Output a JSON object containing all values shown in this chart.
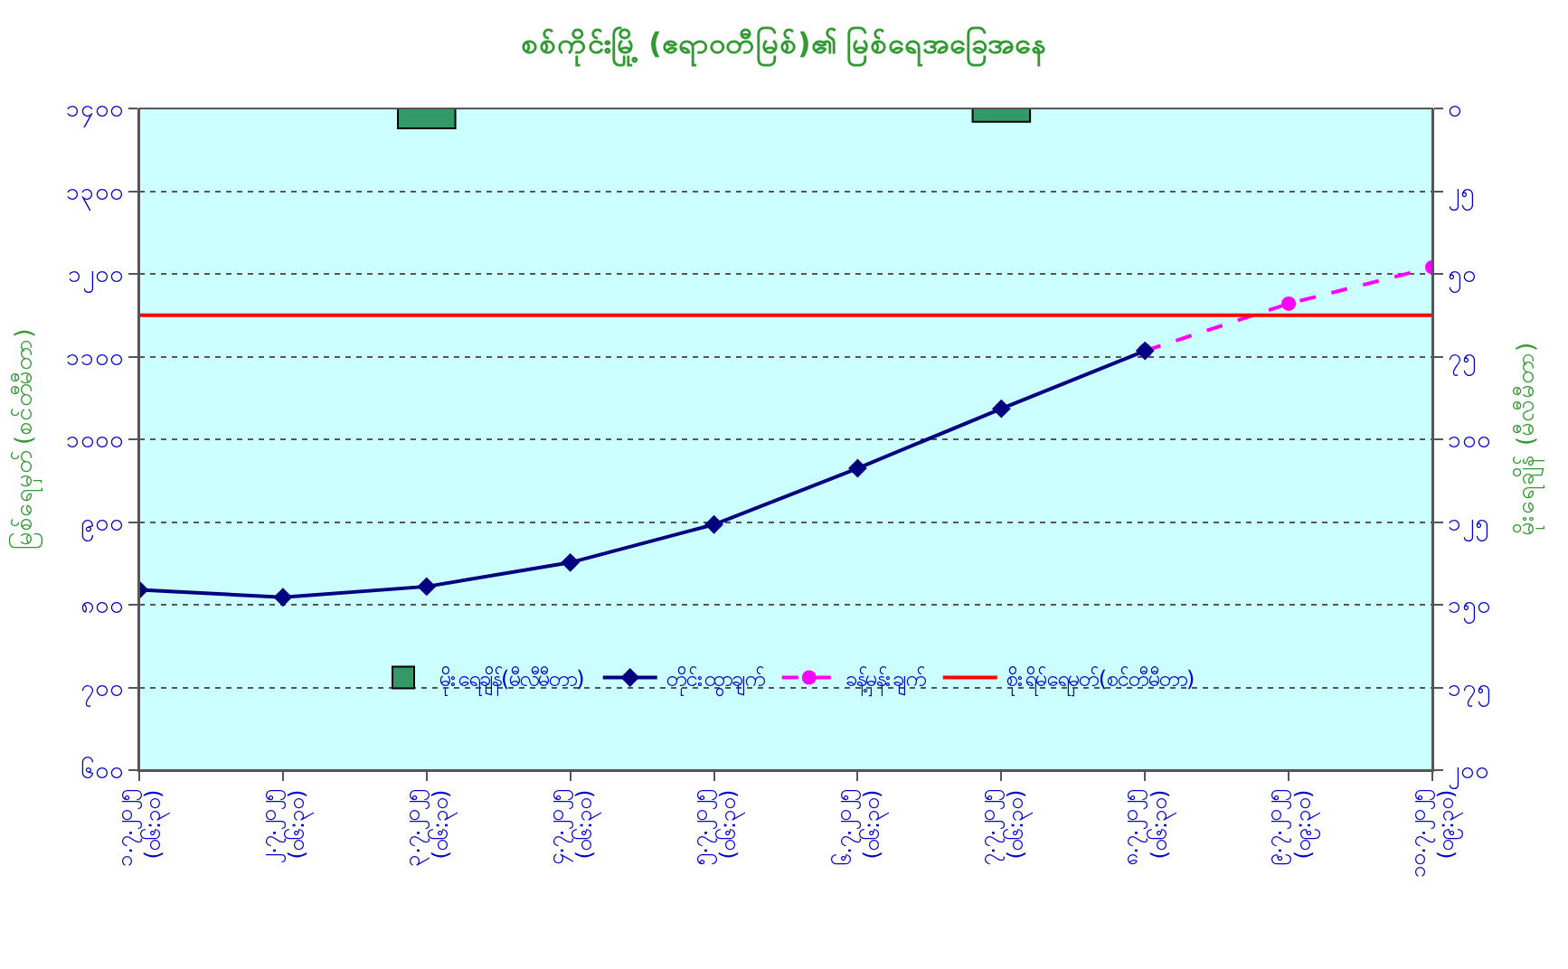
{
  "chart_data": {
    "type": "line",
    "title": "စစ်ကိုင်းမြို့ (ဧရာဝတီမြစ်)၏ မြစ်ရေအခြေအနေ",
    "ylabel": "မြစ်ရေမှတ် (စင်တီမီတာ)",
    "y2label": "မိုးရေချိန် (မီလီမီတာ)",
    "categories": [
      "၁.၇.၂၀၂၅ (၀၆:၃၀)",
      "၂.၇.၂၀၂၅ (၀၆:၃၀)",
      "၃.၇.၂၀၂၅ (၀၆:၃၀)",
      "၄.၇.၂၀၂၅ (၀၆:၃၀)",
      "၅.၇.၂၀၂၅ (၀၆:၃၀)",
      "၆.၇.၂၀၂၅ (၀၆:၃၀)",
      "၇.၇.၂၀၂၅ (၀၆:၃၀)",
      "၈.၇.၂၀၂၅ (၀၆:၃၀)",
      "၉.၇.၂၀၂၅ (၀၉:၃၀)",
      "၁၀.၇.၂၀၂၅ (၀၉:၃၀)"
    ],
    "series": [
      {
        "name": "မိုးရေချိန်(မီလီမီတာ)",
        "type": "bar",
        "axis": "y2",
        "color": "#339966",
        "values": [
          null,
          null,
          6,
          null,
          null,
          null,
          4,
          null,
          null,
          null
        ]
      },
      {
        "name": "တိုင်းထွာချက်",
        "color": "#000080",
        "marker": "diamond",
        "line_style": "solid",
        "values": [
          818,
          809,
          822,
          851,
          897,
          965,
          1037,
          1107,
          null,
          null
        ]
      },
      {
        "name": "ခန့်မှန်းချက်",
        "color": "#ff00ff",
        "marker": "circle",
        "line_style": "dashed",
        "values": [
          null,
          null,
          null,
          null,
          null,
          null,
          null,
          1107,
          1164,
          1208
        ]
      }
    ],
    "ref_lines": [
      {
        "axis": "y",
        "value": 1150,
        "label": "စိုးရိမ်ရေမှတ်(စင်တီမီတာ)",
        "color": "#ff0000",
        "line_style": "solid"
      }
    ],
    "ylim": [
      600,
      1400
    ],
    "yticks": [
      {
        "value": 600,
        "label": "၆၀၀"
      },
      {
        "value": 700,
        "label": "၇၀၀"
      },
      {
        "value": 800,
        "label": "၈၀၀"
      },
      {
        "value": 900,
        "label": "၉၀၀"
      },
      {
        "value": 1000,
        "label": "၁၀၀၀"
      },
      {
        "value": 1100,
        "label": "၁၁၀၀"
      },
      {
        "value": 1200,
        "label": "၁၂၀၀"
      },
      {
        "value": 1300,
        "label": "၁၃၀၀"
      },
      {
        "value": 1400,
        "label": "၁၄၀၀"
      }
    ],
    "y2lim": [
      200,
      0
    ],
    "y2ticks": [
      {
        "value": 0,
        "label": "၀"
      },
      {
        "value": 25,
        "label": "၂၅"
      },
      {
        "value": 50,
        "label": "၅၀"
      },
      {
        "value": 75,
        "label": "၇၅"
      },
      {
        "value": 100,
        "label": "၁၀၀"
      },
      {
        "value": 125,
        "label": "၁၂၅"
      },
      {
        "value": 150,
        "label": "၁၅၀"
      },
      {
        "value": 175,
        "label": "၁၇၅"
      },
      {
        "value": 200,
        "label": "၂၀၀"
      }
    ],
    "grid": "y",
    "legend": "bottom"
  }
}
